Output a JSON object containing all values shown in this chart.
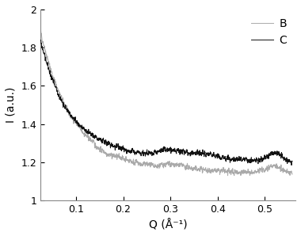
{
  "title": "",
  "xlabel": "Q (Å⁻¹)",
  "ylabel": "I (a.u.)",
  "xlim": [
    0.025,
    0.565
  ],
  "ylim": [
    1.0,
    2.0
  ],
  "xticks": [
    0.1,
    0.2,
    0.3,
    0.4,
    0.5
  ],
  "yticks": [
    1.0,
    1.2,
    1.4,
    1.6,
    1.8,
    2.0
  ],
  "legend_labels": [
    "B",
    "C"
  ],
  "line_colors_B": "#aaaaaa",
  "line_colors_C": "#111111",
  "line_width": 0.7,
  "background_color": "#ffffff"
}
